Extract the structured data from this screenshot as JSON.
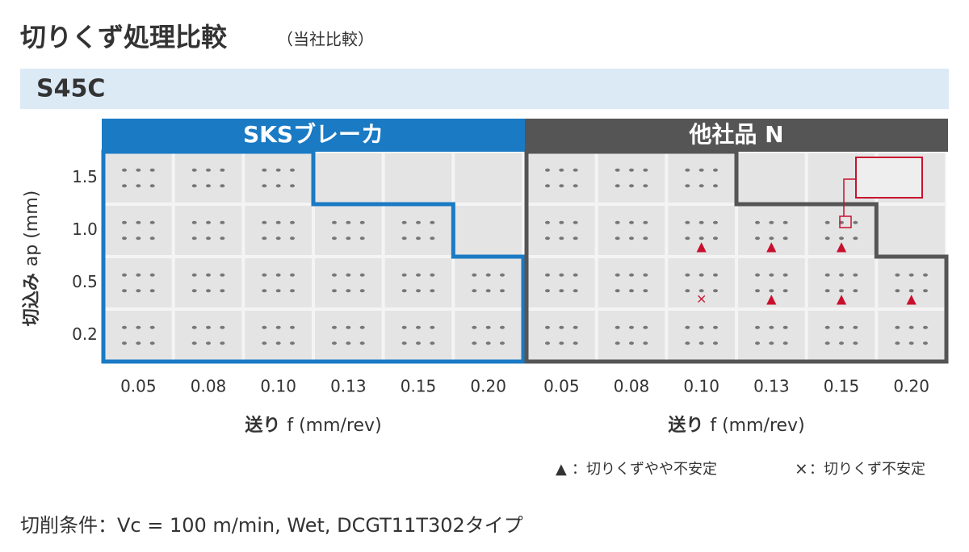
{
  "title": "切りくず処理比較",
  "subtitle": "（当社比較）",
  "material": "S45C",
  "y_axis_title": {
    "main": "切込み",
    "unit": "ap (mm)"
  },
  "y_labels": [
    "1.5",
    "1.0",
    "0.5",
    "0.2"
  ],
  "panels": [
    {
      "name": "SKSブレーカ",
      "x_labels": [
        "0.05",
        "0.08",
        "0.10",
        "0.13",
        "0.15",
        "0.20"
      ],
      "x_axis_title": {
        "main": "送り",
        "unit": "f (mm/rev)"
      }
    },
    {
      "name": "他社品 N",
      "x_labels": [
        "0.05",
        "0.08",
        "0.10",
        "0.13",
        "0.15",
        "0.20"
      ],
      "x_axis_title": {
        "main": "送り",
        "unit": "f (mm/rev)"
      },
      "markers": [
        [
          null,
          null,
          null,
          null,
          null,
          null
        ],
        [
          null,
          null,
          "▲",
          "▲",
          "▲",
          null
        ],
        [
          null,
          null,
          "×",
          "▲",
          "▲",
          "▲"
        ],
        [
          null,
          null,
          null,
          null,
          null,
          null
        ]
      ]
    }
  ],
  "legend": [
    {
      "symbol": "▲",
      "label": "：切りくずやや不安定"
    },
    {
      "symbol": "×",
      "label": "：切りくず不安定"
    }
  ],
  "footer": "切削条件：Vc = 100 m/min, Wet, DCGT11T302タイプ"
}
